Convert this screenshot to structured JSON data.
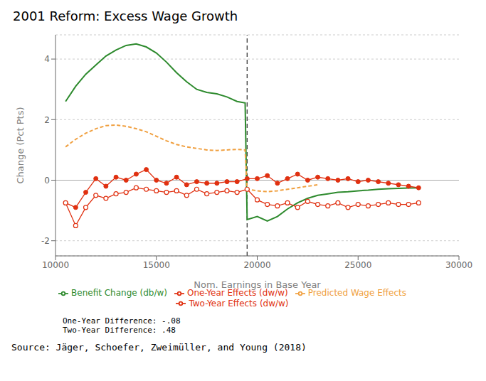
{
  "chart_data": {
    "type": "line",
    "title": "2001 Reform:  Excess Wage Growth",
    "x_label": "Nom. Earnings in Base Year",
    "y_label": "Change (Pct Pts)",
    "xlim": [
      10000,
      30000
    ],
    "ylim": [
      -2.5,
      4.8
    ],
    "xticks": [
      10000,
      15000,
      20000,
      25000,
      30000
    ],
    "yticks": [
      -2,
      0,
      2,
      4
    ],
    "grid": true,
    "vline_x": 19500,
    "hline_y": 0,
    "annotations": [
      "One-Year Difference: -.08",
      "Two-Year Difference: .48"
    ],
    "source": "Source:  Jäger, Schoefer, Zweimüller, and Young (2018)",
    "series": [
      {
        "name": "Benefit Change (db/w)",
        "color": "#2d8a2d",
        "line_style": "solid",
        "marker": "none",
        "x": [
          10500,
          11000,
          11500,
          12000,
          12500,
          13000,
          13500,
          14000,
          14500,
          15000,
          15500,
          16000,
          16500,
          17000,
          17500,
          18000,
          18500,
          19000,
          19400,
          19500,
          20000,
          20500,
          21000,
          21500,
          22000,
          22500,
          23000,
          23500,
          24000,
          24500,
          25000,
          25500,
          26000,
          26500,
          27000,
          27500,
          28000
        ],
        "values": [
          2.6,
          3.1,
          3.5,
          3.8,
          4.1,
          4.3,
          4.45,
          4.5,
          4.4,
          4.2,
          3.9,
          3.55,
          3.25,
          3.0,
          2.9,
          2.85,
          2.75,
          2.6,
          2.55,
          -1.3,
          -1.2,
          -1.35,
          -1.2,
          -0.95,
          -0.75,
          -0.6,
          -0.5,
          -0.45,
          -0.4,
          -0.38,
          -0.35,
          -0.33,
          -0.3,
          -0.28,
          -0.27,
          -0.26,
          -0.25
        ]
      },
      {
        "name": "Predicted Wage Effects",
        "color": "#f0a040",
        "line_style": "dashed",
        "marker": "none",
        "x": [
          10500,
          11000,
          11500,
          12000,
          12500,
          13000,
          13500,
          14000,
          14500,
          15000,
          15500,
          16000,
          16500,
          17000,
          17500,
          18000,
          18500,
          19000,
          19400,
          19500,
          20000,
          20500,
          21000,
          21500,
          22000,
          22500,
          23000
        ],
        "values": [
          1.1,
          1.35,
          1.55,
          1.7,
          1.8,
          1.82,
          1.78,
          1.7,
          1.6,
          1.45,
          1.3,
          1.18,
          1.1,
          1.05,
          1.0,
          0.98,
          1.0,
          1.02,
          1.0,
          -0.3,
          -0.35,
          -0.38,
          -0.35,
          -0.3,
          -0.25,
          -0.2,
          -0.15
        ]
      },
      {
        "name": "One-Year Effects (dw/w)",
        "color": "#e03010",
        "line_style": "solid",
        "marker": "circle",
        "x": [
          10500,
          11000,
          11500,
          12000,
          12500,
          13000,
          13500,
          14000,
          14500,
          15000,
          15500,
          16000,
          16500,
          17000,
          17500,
          18000,
          18500,
          19000,
          19500,
          20000,
          20500,
          21000,
          21500,
          22000,
          22500,
          23000,
          23500,
          24000,
          24500,
          25000,
          25500,
          26000,
          26500,
          27000,
          27500,
          28000
        ],
        "values": [
          -0.75,
          -0.9,
          -0.4,
          0.05,
          -0.2,
          0.1,
          0.0,
          0.2,
          0.35,
          0.0,
          -0.1,
          0.1,
          -0.15,
          -0.05,
          -0.1,
          -0.1,
          -0.05,
          -0.05,
          0.05,
          0.05,
          0.15,
          -0.1,
          0.05,
          0.2,
          0.0,
          0.1,
          0.05,
          0.0,
          0.05,
          -0.05,
          0.0,
          -0.05,
          -0.1,
          -0.15,
          -0.2,
          -0.25
        ]
      },
      {
        "name": "Two-Year Effects (dw/w)",
        "color": "#e03010",
        "line_style": "solid",
        "marker": "open_circle",
        "x": [
          10500,
          11000,
          11500,
          12000,
          12500,
          13000,
          13500,
          14000,
          14500,
          15000,
          15500,
          16000,
          16500,
          17000,
          17500,
          18000,
          18500,
          19000,
          19500,
          20000,
          20500,
          21000,
          21500,
          22000,
          22500,
          23000,
          23500,
          24000,
          24500,
          25000,
          25500,
          26000,
          26500,
          27000,
          27500,
          28000
        ],
        "values": [
          -0.75,
          -1.5,
          -0.9,
          -0.5,
          -0.6,
          -0.45,
          -0.4,
          -0.25,
          -0.3,
          -0.35,
          -0.4,
          -0.35,
          -0.5,
          -0.3,
          -0.45,
          -0.4,
          -0.35,
          -0.4,
          -0.3,
          -0.65,
          -0.8,
          -0.85,
          -0.75,
          -0.9,
          -0.7,
          -0.8,
          -0.85,
          -0.75,
          -0.9,
          -0.8,
          -0.85,
          -0.8,
          -0.75,
          -0.8,
          -0.8,
          -0.75
        ]
      }
    ]
  }
}
